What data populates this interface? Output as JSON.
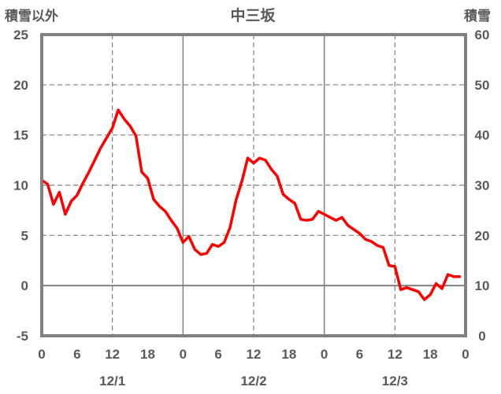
{
  "chart_data": {
    "type": "line",
    "title": "中三坂",
    "ylabel_left": "積雪以外",
    "ylabel_right": "積雪",
    "ylim_left": [
      -5,
      25
    ],
    "yticks_left": [
      "25",
      "20",
      "15",
      "10",
      "5",
      "0",
      "-5"
    ],
    "ylim_right": [
      0,
      60
    ],
    "yticks_right": [
      "60",
      "50",
      "40",
      "30",
      "20",
      "10",
      "0"
    ],
    "xlim_hours": [
      0,
      72
    ],
    "xtick_labels": [
      "0",
      "6",
      "12",
      "18",
      "0",
      "6",
      "12",
      "18",
      "0",
      "6",
      "12",
      "18",
      "0"
    ],
    "date_labels": [
      "12/1",
      "12/2",
      "12/3"
    ],
    "grid": true,
    "colors": {
      "temperature": "#ff0000",
      "snow_depth": "#7030a0",
      "frame": "#808080",
      "grid": "#808080",
      "text": "#595959"
    },
    "series": [
      {
        "axis": "left",
        "color": "#ff0000",
        "x": [
          0,
          1,
          2,
          3,
          4,
          5,
          6,
          7,
          8,
          9,
          10,
          11,
          12,
          13,
          14,
          15,
          16,
          17,
          18,
          19,
          20,
          21,
          22,
          23,
          24,
          25,
          26,
          27,
          28,
          29,
          30,
          31,
          32,
          33,
          34,
          35,
          36,
          37,
          38,
          39,
          40,
          41,
          42,
          43,
          44,
          45,
          46,
          47,
          48,
          49,
          50,
          51,
          52,
          53,
          54,
          55,
          56,
          57,
          58,
          59,
          60,
          61,
          62,
          63,
          64,
          65,
          66,
          67,
          68,
          69,
          70,
          71
        ],
        "values": [
          10.5,
          10.1,
          8.1,
          9.3,
          7.1,
          8.4,
          9.0,
          10.2,
          11.3,
          12.5,
          13.7,
          14.7,
          15.7,
          17.5,
          16.6,
          15.9,
          14.9,
          11.3,
          10.7,
          8.6,
          7.9,
          7.4,
          6.5,
          5.7,
          4.3,
          4.9,
          3.6,
          3.1,
          3.2,
          4.1,
          3.9,
          4.3,
          5.8,
          8.5,
          10.4,
          12.7,
          12.2,
          12.7,
          12.5,
          11.6,
          10.9,
          9.1,
          8.6,
          8.2,
          6.6,
          6.5,
          6.6,
          7.4,
          7.1,
          6.8,
          6.5,
          6.8,
          6.0,
          5.6,
          5.2,
          4.6,
          4.4,
          4.0,
          3.8,
          2.0,
          1.9,
          -0.4,
          -0.2,
          -0.4,
          -0.6,
          -1.4,
          -0.9,
          0.2,
          -0.3,
          1.1,
          0.9,
          0.9
        ]
      },
      {
        "axis": "right",
        "color": "#7030a0",
        "x": [
          0,
          71
        ],
        "values": [
          0,
          0
        ]
      }
    ]
  }
}
